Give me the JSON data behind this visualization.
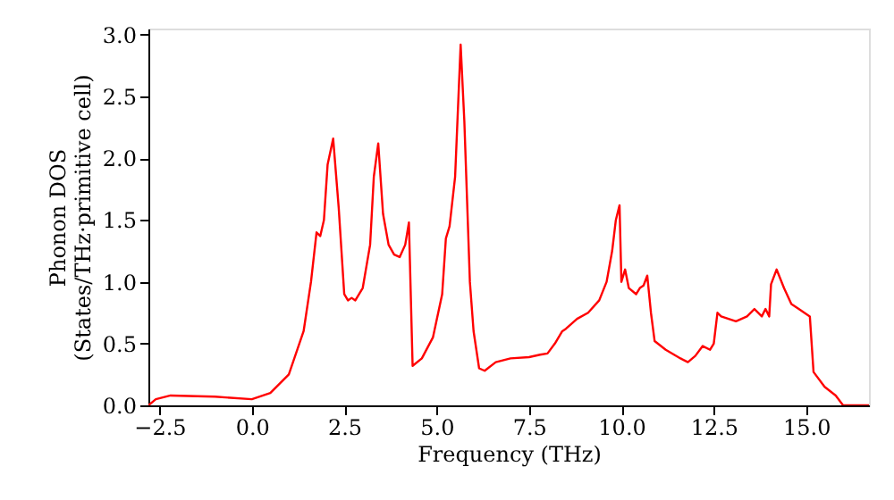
{
  "chart_data": {
    "type": "line",
    "xlabel": "Frequency (THz)",
    "ylabel": "Phonon DOS\n(States/THz·primitive cell)",
    "xlim": [
      -2.8,
      16.7
    ],
    "ylim": [
      0,
      3.05
    ],
    "xticks": [
      {
        "value": -2.5,
        "label": "−2.5"
      },
      {
        "value": 0,
        "label": "0.0"
      },
      2.5,
      {
        "value": 5,
        "label": "5.0"
      },
      7.5,
      {
        "value": 10,
        "label": "10.0"
      },
      12.5,
      {
        "value": 15,
        "label": "15.0"
      }
    ],
    "yticks": [
      {
        "value": 0,
        "label": "0.0"
      },
      0.5,
      {
        "value": 1,
        "label": "1.0"
      },
      1.5,
      {
        "value": 2,
        "label": "2.0"
      },
      2.5,
      {
        "value": 3,
        "label": "3.0"
      }
    ],
    "grid": false,
    "marker": "none",
    "line_style": "solid",
    "x": [
      -2.8,
      -2.6,
      -2.2,
      -1.0,
      0.0,
      0.5,
      1.0,
      1.4,
      1.6,
      1.75,
      1.85,
      1.95,
      2.05,
      2.2,
      2.35,
      2.5,
      2.6,
      2.7,
      2.8,
      3.0,
      3.2,
      3.3,
      3.42,
      3.55,
      3.7,
      3.85,
      4.0,
      4.15,
      4.25,
      4.35,
      4.6,
      4.9,
      5.15,
      5.25,
      5.35,
      5.5,
      5.65,
      5.75,
      5.9,
      6.0,
      6.15,
      6.3,
      6.6,
      7.0,
      7.5,
      7.8,
      8.0,
      8.2,
      8.4,
      8.5,
      8.8,
      9.1,
      9.4,
      9.6,
      9.75,
      9.85,
      9.95,
      10.0,
      10.1,
      10.2,
      10.4,
      10.5,
      10.6,
      10.7,
      10.8,
      10.9,
      11.2,
      11.6,
      11.8,
      12.0,
      12.2,
      12.4,
      12.5,
      12.6,
      12.7,
      12.9,
      13.1,
      13.4,
      13.6,
      13.8,
      13.9,
      14.0,
      14.05,
      14.2,
      14.4,
      14.6,
      14.8,
      15.1,
      15.2,
      15.5,
      15.8,
      16.0,
      16.7
    ],
    "series": [
      {
        "color": "#ff0000",
        "values": [
          0.0,
          0.05,
          0.08,
          0.07,
          0.05,
          0.1,
          0.25,
          0.6,
          1.0,
          1.4,
          1.37,
          1.5,
          1.95,
          2.16,
          1.6,
          0.9,
          0.85,
          0.87,
          0.85,
          0.95,
          1.3,
          1.85,
          2.12,
          1.55,
          1.3,
          1.22,
          1.2,
          1.3,
          1.48,
          0.32,
          0.38,
          0.55,
          0.9,
          1.35,
          1.45,
          1.85,
          2.92,
          2.3,
          1.0,
          0.6,
          0.3,
          0.28,
          0.35,
          0.38,
          0.39,
          0.41,
          0.42,
          0.5,
          0.6,
          0.62,
          0.7,
          0.75,
          0.85,
          1.0,
          1.25,
          1.5,
          1.62,
          1.0,
          1.1,
          0.95,
          0.9,
          0.95,
          0.97,
          1.05,
          0.75,
          0.52,
          0.45,
          0.38,
          0.35,
          0.4,
          0.48,
          0.45,
          0.5,
          0.75,
          0.72,
          0.7,
          0.68,
          0.72,
          0.78,
          0.72,
          0.78,
          0.72,
          0.98,
          1.1,
          0.95,
          0.82,
          0.78,
          0.72,
          0.27,
          0.15,
          0.08,
          0.0,
          0.0
        ]
      }
    ]
  }
}
